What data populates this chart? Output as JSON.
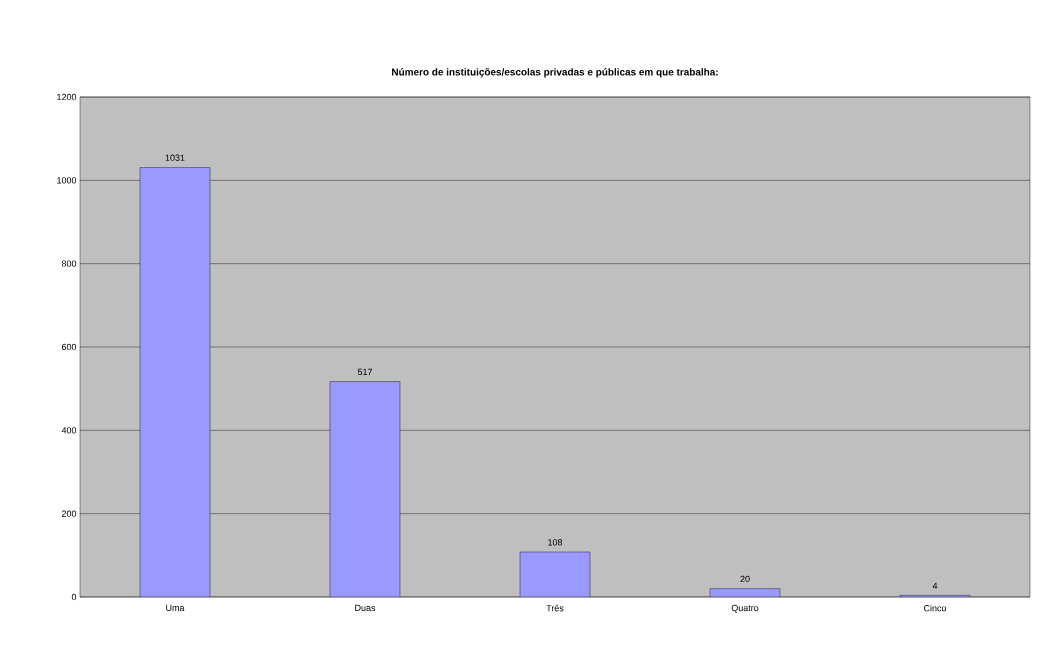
{
  "chart_data": {
    "type": "bar",
    "title": "Número de instituições/escolas privadas e públicas em que trabalha:",
    "categories": [
      "Uma",
      "Duas",
      "Três",
      "Quatro",
      "Cinco"
    ],
    "values": [
      1031,
      517,
      108,
      20,
      4
    ],
    "color": "#9999ff",
    "ylim": [
      0,
      1200
    ],
    "yticks": [
      0,
      200,
      400,
      600,
      800,
      1000,
      1200
    ],
    "grid": "y",
    "data_labels": true
  }
}
